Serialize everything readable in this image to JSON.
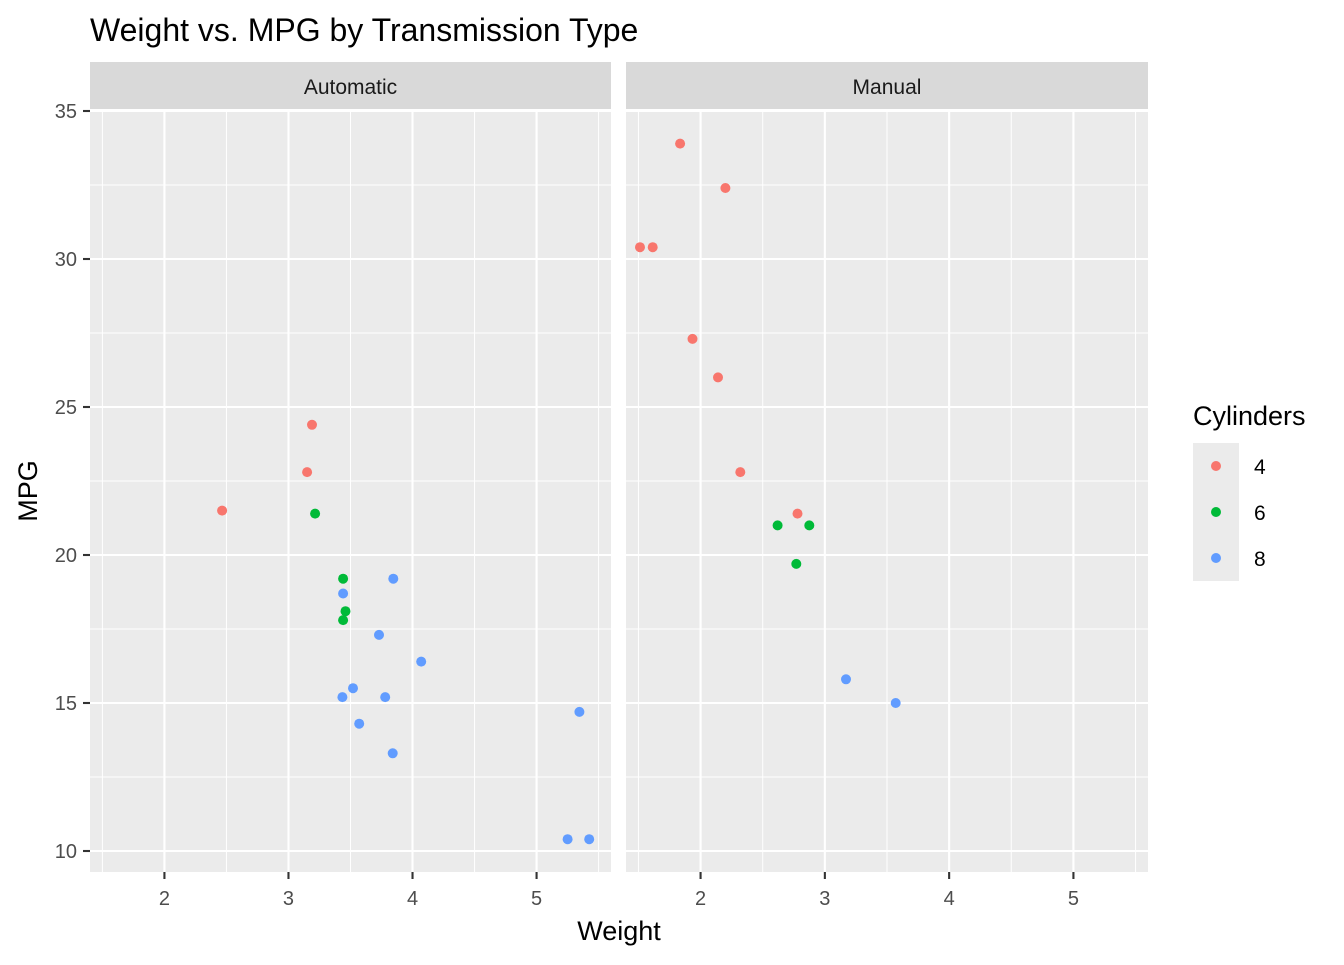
{
  "chart_data": {
    "type": "scatter",
    "title": "Weight vs. MPG by Transmission Type",
    "xlabel": "Weight",
    "ylabel": "MPG",
    "xlim": [
      1.4,
      5.6
    ],
    "ylim": [
      9.5,
      35.5
    ],
    "x_ticks": [
      2,
      3,
      4,
      5
    ],
    "y_ticks": [
      10,
      15,
      20,
      25,
      30,
      35
    ],
    "grid": true,
    "legend": {
      "title": "Cylinders",
      "placement": "right",
      "entries": [
        {
          "label": "4",
          "color": "#F8766D"
        },
        {
          "label": "6",
          "color": "#00BA38"
        },
        {
          "label": "8",
          "color": "#619CFF"
        }
      ]
    },
    "facets": [
      {
        "label": "Automatic",
        "points": [
          {
            "x": 2.465,
            "y": 21.5,
            "cyl": "4"
          },
          {
            "x": 3.19,
            "y": 24.4,
            "cyl": "4"
          },
          {
            "x": 3.15,
            "y": 22.8,
            "cyl": "4"
          },
          {
            "x": 3.215,
            "y": 21.4,
            "cyl": "6"
          },
          {
            "x": 3.44,
            "y": 19.2,
            "cyl": "6"
          },
          {
            "x": 3.46,
            "y": 18.1,
            "cyl": "6"
          },
          {
            "x": 3.44,
            "y": 17.8,
            "cyl": "6"
          },
          {
            "x": 3.44,
            "y": 18.7,
            "cyl": "8"
          },
          {
            "x": 3.57,
            "y": 14.3,
            "cyl": "8"
          },
          {
            "x": 4.07,
            "y": 16.4,
            "cyl": "8"
          },
          {
            "x": 3.73,
            "y": 17.3,
            "cyl": "8"
          },
          {
            "x": 3.78,
            "y": 15.2,
            "cyl": "8"
          },
          {
            "x": 5.25,
            "y": 10.4,
            "cyl": "8"
          },
          {
            "x": 5.424,
            "y": 10.4,
            "cyl": "8"
          },
          {
            "x": 5.345,
            "y": 14.7,
            "cyl": "8"
          },
          {
            "x": 3.52,
            "y": 15.5,
            "cyl": "8"
          },
          {
            "x": 3.435,
            "y": 15.2,
            "cyl": "8"
          },
          {
            "x": 3.84,
            "y": 13.3,
            "cyl": "8"
          },
          {
            "x": 3.845,
            "y": 19.2,
            "cyl": "8"
          }
        ]
      },
      {
        "label": "Manual",
        "points": [
          {
            "x": 2.32,
            "y": 22.8,
            "cyl": "4"
          },
          {
            "x": 2.2,
            "y": 32.4,
            "cyl": "4"
          },
          {
            "x": 1.615,
            "y": 30.4,
            "cyl": "4"
          },
          {
            "x": 1.835,
            "y": 33.9,
            "cyl": "4"
          },
          {
            "x": 1.935,
            "y": 27.3,
            "cyl": "4"
          },
          {
            "x": 2.14,
            "y": 26.0,
            "cyl": "4"
          },
          {
            "x": 1.513,
            "y": 30.4,
            "cyl": "4"
          },
          {
            "x": 2.78,
            "y": 21.4,
            "cyl": "4"
          },
          {
            "x": 2.62,
            "y": 21.0,
            "cyl": "6"
          },
          {
            "x": 2.875,
            "y": 21.0,
            "cyl": "6"
          },
          {
            "x": 2.77,
            "y": 19.7,
            "cyl": "6"
          },
          {
            "x": 3.17,
            "y": 15.8,
            "cyl": "8"
          },
          {
            "x": 3.57,
            "y": 15.0,
            "cyl": "8"
          }
        ]
      }
    ]
  }
}
